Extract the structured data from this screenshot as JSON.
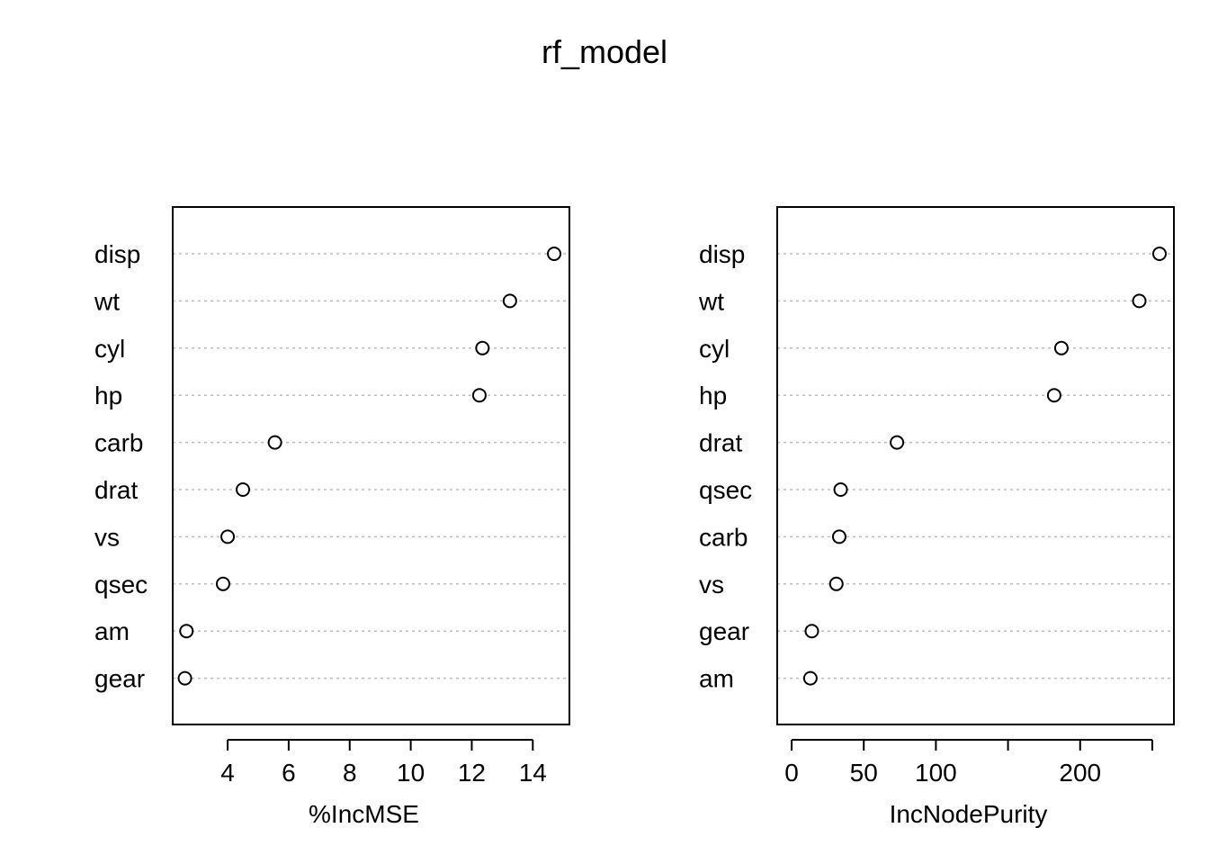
{
  "title": "rf_model",
  "chart_data": [
    {
      "type": "dotchart",
      "xlabel": "%IncMSE",
      "ylabel": "",
      "xlim": [
        2.2,
        15.2
      ],
      "xticks": [
        4,
        6,
        8,
        10,
        12,
        14
      ],
      "xtick_labels": [
        "4",
        "6",
        "8",
        "10",
        "12",
        "14"
      ],
      "grid": "dotted horizontal lines",
      "categories": [
        "disp",
        "wt",
        "cyl",
        "hp",
        "carb",
        "drat",
        "vs",
        "qsec",
        "am",
        "gear"
      ],
      "values": [
        14.7,
        13.25,
        12.35,
        12.25,
        5.55,
        4.5,
        4.0,
        3.85,
        2.65,
        2.6
      ]
    },
    {
      "type": "dotchart",
      "xlabel": "IncNodePurity",
      "ylabel": "",
      "xlim": [
        -10,
        265
      ],
      "xticks": [
        0,
        50,
        100,
        150,
        200,
        250
      ],
      "xtick_labels": [
        "0",
        "50",
        "100",
        "",
        "200",
        ""
      ],
      "grid": "dotted horizontal lines",
      "categories": [
        "disp",
        "wt",
        "cyl",
        "hp",
        "drat",
        "qsec",
        "carb",
        "vs",
        "gear",
        "am"
      ],
      "values": [
        255,
        241,
        187,
        182,
        73,
        34,
        33,
        31,
        14,
        13
      ]
    }
  ]
}
